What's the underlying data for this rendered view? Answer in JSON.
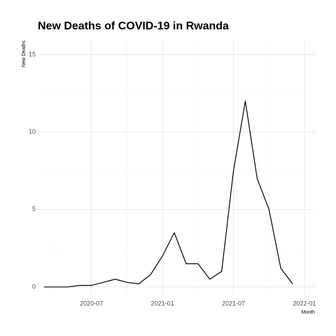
{
  "chart_data": {
    "type": "line",
    "title": "New Deaths of COVID-19 in Rwanda",
    "x_label": "Month",
    "y_label": "New Deaths",
    "x": [
      "2020-03",
      "2020-04",
      "2020-05",
      "2020-06",
      "2020-07",
      "2020-08",
      "2020-09",
      "2020-10",
      "2020-11",
      "2020-12",
      "2021-01",
      "2021-02",
      "2021-03",
      "2021-04",
      "2021-05",
      "2021-06",
      "2021-07",
      "2021-08",
      "2021-09",
      "2021-10",
      "2021-11",
      "2021-12"
    ],
    "series": [
      {
        "name": "New Deaths",
        "color": "#000000",
        "values": [
          0,
          0,
          0,
          0.1,
          0.1,
          0.3,
          0.5,
          0.3,
          0.2,
          0.8,
          2.0,
          3.5,
          1.5,
          1.5,
          0.5,
          1.0,
          7.5,
          12,
          7,
          5,
          1.2,
          0.2
        ]
      }
    ],
    "xlim": [
      "2020-03",
      "2022-01"
    ],
    "xticks": [
      "2020-07",
      "2021-01",
      "2021-07",
      "2022-01"
    ],
    "ylim": [
      -0.5,
      15.9
    ],
    "yticks": [
      0,
      5,
      10,
      15
    ],
    "grid": true
  }
}
